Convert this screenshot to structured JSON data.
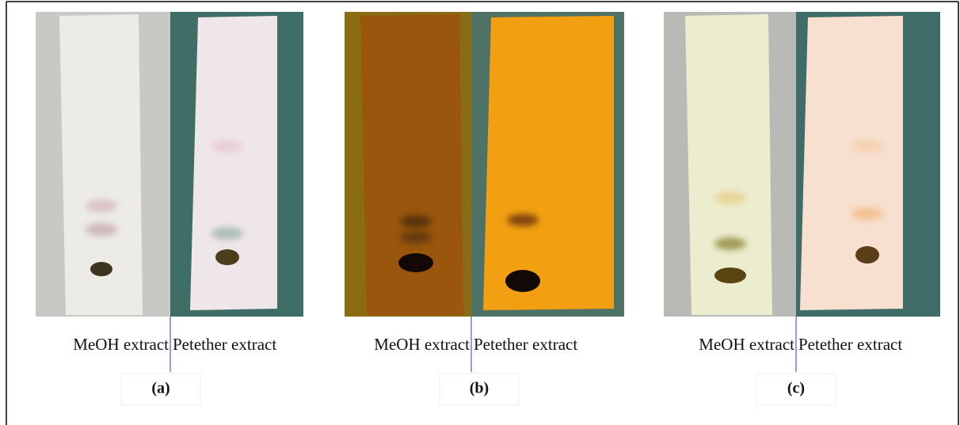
{
  "panels": [
    {
      "left_label": "MeOH extract",
      "right_label": "Petether extract",
      "caption": "(a)"
    },
    {
      "left_label": "MeOH extract",
      "right_label": "Petether extract",
      "caption": "(b)"
    },
    {
      "left_label": "MeOH extract",
      "right_label": "Petether extract",
      "caption": "(c)"
    }
  ]
}
